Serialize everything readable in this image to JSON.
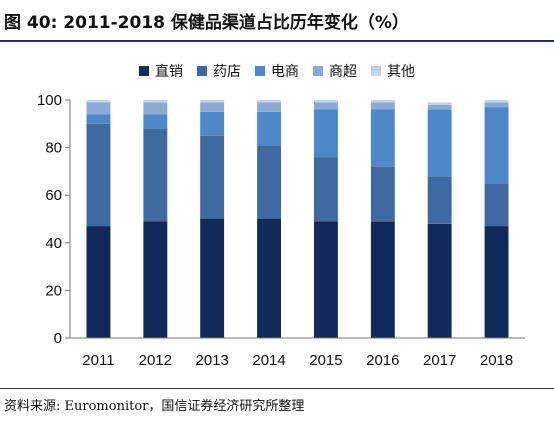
{
  "figure": {
    "title": "图 40:  2011-2018 保健品渠道占比历年变化（%）",
    "source": "资料来源: Euromonitor，国信证券经济研究所整理"
  },
  "colors": {
    "title_rule": "#1b2f5e",
    "series": [
      "#102a5a",
      "#3e6aa1",
      "#4f88c9",
      "#8aa9d3",
      "#c3d3ea"
    ]
  },
  "chart_data": {
    "type": "bar",
    "stacked": true,
    "categories": [
      "2011",
      "2012",
      "2013",
      "2014",
      "2015",
      "2016",
      "2017",
      "2018"
    ],
    "series": [
      {
        "name": "直销",
        "values": [
          47,
          49,
          50,
          50,
          49,
          49,
          48,
          47
        ]
      },
      {
        "name": "药店",
        "values": [
          43,
          39,
          35,
          31,
          27,
          23,
          20,
          18
        ]
      },
      {
        "name": "电商",
        "values": [
          4,
          6,
          10,
          14,
          20,
          24,
          28,
          32
        ]
      },
      {
        "name": "商超",
        "values": [
          5,
          5,
          4,
          4,
          3,
          3,
          2,
          2
        ]
      },
      {
        "name": "其他",
        "values": [
          1,
          1,
          1,
          1,
          1,
          1,
          1,
          1
        ]
      }
    ],
    "ylim": [
      0,
      100
    ],
    "yticks": [
      "0",
      "20",
      "40",
      "60",
      "80",
      "100"
    ],
    "legend_position": "top",
    "grid": false
  }
}
